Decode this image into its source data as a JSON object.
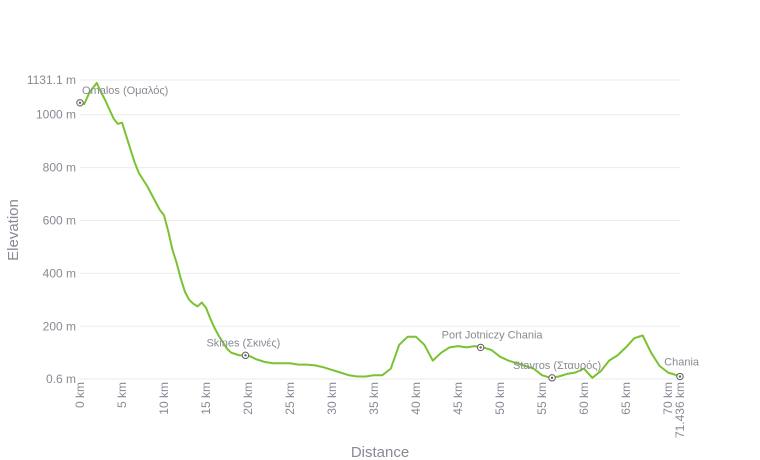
{
  "chart_data": {
    "type": "area",
    "xlabel": "Distance",
    "ylabel": "Elevation",
    "x_unit": "km",
    "y_unit": "m",
    "xlim": [
      0,
      71.436
    ],
    "ylim": [
      0.6,
      1131.1
    ],
    "x_ticks": [
      {
        "value": 0,
        "label": "0 km"
      },
      {
        "value": 5,
        "label": "5 km"
      },
      {
        "value": 10,
        "label": "10 km"
      },
      {
        "value": 15,
        "label": "15 km"
      },
      {
        "value": 20,
        "label": "20 km"
      },
      {
        "value": 25,
        "label": "25 km"
      },
      {
        "value": 30,
        "label": "30 km"
      },
      {
        "value": 35,
        "label": "35 km"
      },
      {
        "value": 40,
        "label": "40 km"
      },
      {
        "value": 45,
        "label": "45 km"
      },
      {
        "value": 50,
        "label": "50 km"
      },
      {
        "value": 55,
        "label": "55 km"
      },
      {
        "value": 60,
        "label": "60 km"
      },
      {
        "value": 65,
        "label": "65 km"
      },
      {
        "value": 70,
        "label": "70 km"
      },
      {
        "value": 71.436,
        "label": "71.436 km"
      }
    ],
    "y_ticks": [
      {
        "value": 0.6,
        "label": "0.6 m"
      },
      {
        "value": 200,
        "label": "200 m"
      },
      {
        "value": 400,
        "label": "400 m"
      },
      {
        "value": 600,
        "label": "600 m"
      },
      {
        "value": 800,
        "label": "800 m"
      },
      {
        "value": 1000,
        "label": "1000 m"
      },
      {
        "value": 1131.1,
        "label": "1131.1 m"
      }
    ],
    "grid": true,
    "series": [
      {
        "x": [
          0,
          0.5,
          1,
          1.5,
          2,
          2.5,
          3,
          3.5,
          4,
          4.5,
          5,
          5.5,
          6,
          6.5,
          7,
          7.5,
          8,
          8.5,
          9,
          9.5,
          10,
          10.5,
          11,
          11.5,
          12,
          12.5,
          13,
          13.5,
          14,
          14.5,
          15,
          15.5,
          16,
          16.5,
          17,
          17.5,
          18,
          18.5,
          19,
          20,
          21,
          22,
          23,
          24,
          25,
          26,
          27,
          28,
          29,
          30,
          31,
          32,
          33,
          34,
          35,
          36,
          37,
          38,
          39,
          40,
          41,
          42,
          43,
          44,
          45,
          46,
          47,
          48,
          49,
          50,
          51,
          52,
          53,
          54,
          55,
          56,
          57,
          58,
          59,
          60,
          61,
          62,
          63,
          64,
          65,
          66,
          67,
          68,
          69,
          70,
          71,
          71.436
        ],
        "y": [
          1045,
          1040,
          1075,
          1100,
          1120,
          1085,
          1055,
          1020,
          985,
          965,
          970,
          920,
          870,
          820,
          780,
          755,
          730,
          700,
          670,
          640,
          620,
          560,
          490,
          440,
          380,
          330,
          300,
          285,
          275,
          290,
          270,
          230,
          195,
          165,
          140,
          115,
          100,
          95,
          90,
          90,
          75,
          65,
          60,
          60,
          60,
          55,
          55,
          52,
          45,
          35,
          25,
          15,
          10,
          10,
          15,
          15,
          40,
          130,
          160,
          160,
          130,
          70,
          100,
          120,
          125,
          120,
          125,
          120,
          110,
          85,
          70,
          60,
          50,
          40,
          15,
          5,
          10,
          20,
          25,
          40,
          5,
          30,
          70,
          90,
          120,
          155,
          165,
          100,
          50,
          25,
          15,
          10
        ]
      }
    ],
    "waypoints": [
      {
        "x": 0,
        "y": 1045,
        "label": "Omalos (Ομαλός)"
      },
      {
        "x": 19.7,
        "y": 90,
        "label": "Skines (Σκινές)"
      },
      {
        "x": 47.7,
        "y": 120,
        "label": "Port Jotniczy Chania"
      },
      {
        "x": 56.2,
        "y": 5,
        "label": "Stavros (Σταυρός)"
      },
      {
        "x": 71.436,
        "y": 10,
        "label": "Chania"
      }
    ],
    "colors": {
      "line": "#7ac231",
      "grid": "#ebebeb",
      "text": "#888a94",
      "marker": "#606060"
    }
  }
}
